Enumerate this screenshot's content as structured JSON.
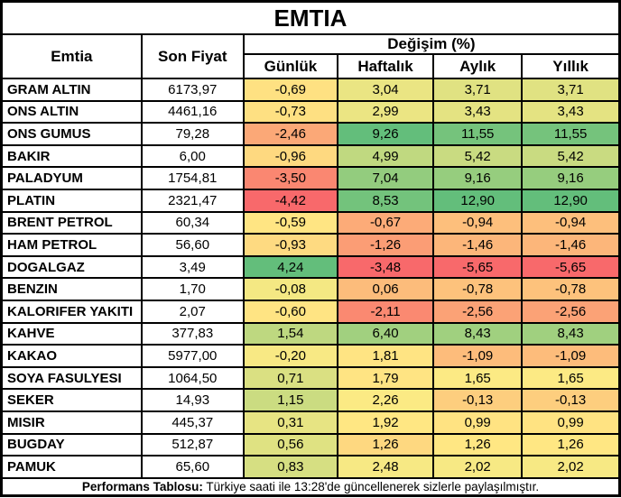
{
  "title": "EMTIA",
  "columns": {
    "emtia": "Emtia",
    "son_fiyat": "Son Fiyat",
    "degisim": "Değişim (%)",
    "sub": [
      "Günlük",
      "Haftalık",
      "Aylık",
      "Yıllık"
    ]
  },
  "rows": [
    {
      "name": "GRAM ALTIN",
      "price": "6173,97",
      "changes": [
        "-0,69",
        "3,04",
        "3,71",
        "3,71"
      ],
      "colors": [
        "#FEE182",
        "#EAE583",
        "#E0E282",
        "#E0E282"
      ]
    },
    {
      "name": "ONS ALTIN",
      "price": "4461,16",
      "changes": [
        "-0,73",
        "2,99",
        "3,43",
        "3,43"
      ],
      "colors": [
        "#FEE082",
        "#EBE583",
        "#E4E382",
        "#E4E382"
      ]
    },
    {
      "name": "ONS GUMUS",
      "price": "79,28",
      "changes": [
        "-2,46",
        "9,26",
        "11,55",
        "11,55"
      ],
      "colors": [
        "#FBA877",
        "#63BE7B",
        "#75C37C",
        "#75C37C"
      ]
    },
    {
      "name": "BAKIR",
      "price": "6,00",
      "changes": [
        "-0,96",
        "4,99",
        "5,42",
        "5,42"
      ],
      "colors": [
        "#FED980",
        "#C0D980",
        "#C9DB81",
        "#C9DB81"
      ]
    },
    {
      "name": "PALADYUM",
      "price": "1754,81",
      "changes": [
        "-3,50",
        "7,04",
        "9,16",
        "9,16"
      ],
      "colors": [
        "#FA8771",
        "#93CC7E",
        "#96CD7E",
        "#96CD7E"
      ]
    },
    {
      "name": "PLATIN",
      "price": "2321,47",
      "changes": [
        "-4,42",
        "8,53",
        "12,90",
        "12,90"
      ],
      "colors": [
        "#F8696B",
        "#73C37C",
        "#63BE7B",
        "#63BE7B"
      ]
    },
    {
      "name": "BRENT PETROL",
      "price": "60,34",
      "changes": [
        "-0,59",
        "-0,67",
        "-0,94",
        "-0,94"
      ],
      "colors": [
        "#FFE583",
        "#FCAB78",
        "#FDBF7C",
        "#FDBF7C"
      ]
    },
    {
      "name": "HAM PETROL",
      "price": "56,60",
      "changes": [
        "-0,93",
        "-1,26",
        "-1,46",
        "-1,46"
      ],
      "colors": [
        "#FEDA81",
        "#FB9D75",
        "#FCB67A",
        "#FCB67A"
      ]
    },
    {
      "name": "DOGALGAZ",
      "price": "3,49",
      "changes": [
        "4,24",
        "-3,48",
        "-5,65",
        "-5,65"
      ],
      "colors": [
        "#63BE7B",
        "#F8696B",
        "#F8696B",
        "#F8696B"
      ]
    },
    {
      "name": "BENZIN",
      "price": "1,70",
      "changes": [
        "-0,08",
        "0,06",
        "-0,78",
        "-0,78"
      ],
      "colors": [
        "#F4E883",
        "#FCBC7B",
        "#FDC27C",
        "#FDC27C"
      ]
    },
    {
      "name": "KALORIFER YAKITI",
      "price": "2,07",
      "changes": [
        "-0,60",
        "-2,11",
        "-2,56",
        "-2,56"
      ],
      "colors": [
        "#FFE483",
        "#FA8971",
        "#FBA276",
        "#FBA276"
      ]
    },
    {
      "name": "KAHVE",
      "price": "377,83",
      "changes": [
        "1,54",
        "6,40",
        "8,43",
        "8,43"
      ],
      "colors": [
        "#BED880",
        "#A1D07F",
        "#A0D07F",
        "#A0D07F"
      ]
    },
    {
      "name": "KAKAO",
      "price": "5977,00",
      "changes": [
        "-0,20",
        "1,81",
        "-1,09",
        "-1,09"
      ],
      "colors": [
        "#F8E984",
        "#FFE483",
        "#FDBC7B",
        "#FDBC7B"
      ]
    },
    {
      "name": "SOYA FASULYESI",
      "price": "1064,50",
      "changes": [
        "0,71",
        "1,79",
        "1,65",
        "1,65"
      ],
      "colors": [
        "#DAE082",
        "#FFE483",
        "#FCEA84",
        "#FCEA84"
      ]
    },
    {
      "name": "SEKER",
      "price": "14,93",
      "changes": [
        "1,15",
        "2,26",
        "-0,13",
        "-0,13"
      ],
      "colors": [
        "#CBDC81",
        "#FBEA84",
        "#FDCE7E",
        "#FDCE7E"
      ]
    },
    {
      "name": "MISIR",
      "price": "445,37",
      "changes": [
        "0,31",
        "1,92",
        "0,99",
        "0,99"
      ],
      "colors": [
        "#E7E483",
        "#FFE783",
        "#FFE382",
        "#FFE382"
      ]
    },
    {
      "name": "BUGDAY",
      "price": "512,87",
      "changes": [
        "0,56",
        "1,26",
        "1,26",
        "1,26"
      ],
      "colors": [
        "#DFE282",
        "#FED880",
        "#FFE783",
        "#FFE783"
      ]
    },
    {
      "name": "PAMUK",
      "price": "65,60",
      "changes": [
        "0,83",
        "2,48",
        "2,02",
        "2,02"
      ],
      "colors": [
        "#D6DF82",
        "#F7E984",
        "#F7E984",
        "#F7E984"
      ]
    }
  ],
  "footer": {
    "bold": "Performans Tablosu:",
    "text": "Türkiye saati ile 13:28'de güncellenerek sizlerle paylaşılmıştır."
  },
  "colors": {
    "scale_min_red": "#F8696B",
    "scale_mid_yellow": "#FFEB84",
    "scale_max_green": "#63BE7B",
    "border": "#000000",
    "background": "#FFFFFF"
  },
  "chart_data": {
    "type": "table",
    "title": "EMTIA",
    "columns": [
      "Emtia",
      "Son Fiyat",
      "Günlük",
      "Haftalık",
      "Aylık",
      "Yıllık"
    ],
    "rows": [
      [
        "GRAM ALTIN",
        6173.97,
        -0.69,
        3.04,
        3.71,
        3.71
      ],
      [
        "ONS ALTIN",
        4461.16,
        -0.73,
        2.99,
        3.43,
        3.43
      ],
      [
        "ONS GUMUS",
        79.28,
        -2.46,
        9.26,
        11.55,
        11.55
      ],
      [
        "BAKIR",
        6.0,
        -0.96,
        4.99,
        5.42,
        5.42
      ],
      [
        "PALADYUM",
        1754.81,
        -3.5,
        7.04,
        9.16,
        9.16
      ],
      [
        "PLATIN",
        2321.47,
        -4.42,
        8.53,
        12.9,
        12.9
      ],
      [
        "BRENT PETROL",
        60.34,
        -0.59,
        -0.67,
        -0.94,
        -0.94
      ],
      [
        "HAM PETROL",
        56.6,
        -0.93,
        -1.26,
        -1.46,
        -1.46
      ],
      [
        "DOGALGAZ",
        3.49,
        4.24,
        -3.48,
        -5.65,
        -5.65
      ],
      [
        "BENZIN",
        1.7,
        -0.08,
        0.06,
        -0.78,
        -0.78
      ],
      [
        "KALORIFER YAKITI",
        2.07,
        -0.6,
        -2.11,
        -2.56,
        -2.56
      ],
      [
        "KAHVE",
        377.83,
        1.54,
        6.4,
        8.43,
        8.43
      ],
      [
        "KAKAO",
        5977.0,
        -0.2,
        1.81,
        -1.09,
        -1.09
      ],
      [
        "SOYA FASULYESI",
        1064.5,
        0.71,
        1.79,
        1.65,
        1.65
      ],
      [
        "SEKER",
        14.93,
        1.15,
        2.26,
        -0.13,
        -0.13
      ],
      [
        "MISIR",
        445.37,
        0.31,
        1.92,
        0.99,
        0.99
      ],
      [
        "BUGDAY",
        512.87,
        0.56,
        1.26,
        1.26,
        1.26
      ],
      [
        "PAMUK",
        65.6,
        0.83,
        2.48,
        2.02,
        2.02
      ]
    ],
    "color_scale": "3-color conditional formatting per change column: column min = red #F8696B, median = yellow #FFEB84, column max = green #63BE7B"
  }
}
